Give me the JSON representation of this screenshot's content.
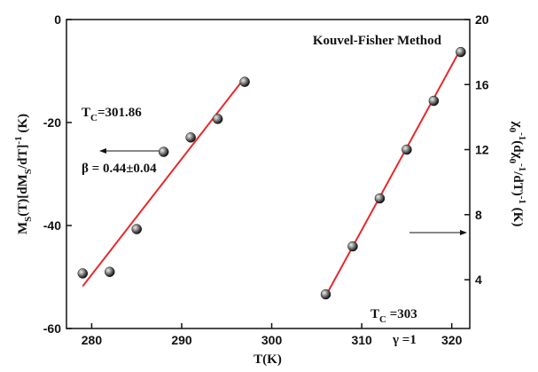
{
  "chart_data": {
    "type": "scatter",
    "xlabel": "T(K)",
    "ylabel": [
      [
        "M",
        "base"
      ],
      [
        "S",
        "sub"
      ],
      [
        "(T)[dM",
        "base"
      ],
      [
        "S",
        "sub"
      ],
      [
        "/dT]",
        "base"
      ],
      [
        "-1",
        "sup"
      ],
      [
        " (K)",
        "base"
      ]
    ],
    "y2label": [
      [
        "χ",
        "base"
      ],
      [
        "0",
        "sub"
      ],
      [
        "-1",
        "sup"
      ],
      [
        "(dχ",
        "base"
      ],
      [
        "0",
        "sub"
      ],
      [
        "-1",
        "sup"
      ],
      [
        "/dT)",
        "base"
      ],
      [
        "-1",
        "sup"
      ],
      [
        " (K)",
        "base"
      ]
    ],
    "xlim": [
      277.2,
      322
    ],
    "xticks": [
      280,
      290,
      300,
      310,
      320
    ],
    "ylim": [
      -60,
      0
    ],
    "yticks": [
      -60,
      -40,
      -20,
      0
    ],
    "y2lim": [
      1,
      20
    ],
    "y2ticks": [
      4,
      8,
      12,
      16,
      20
    ],
    "series": [
      {
        "color": "#111111",
        "x": [
          279,
          282,
          285,
          288,
          291,
          294,
          297
        ],
        "values": [
          -49.3,
          -49.0,
          -40.7,
          -25.7,
          -22.9,
          -19.3,
          -12.1
        ]
      },
      {
        "color": "#111111",
        "axis": "y2",
        "x": [
          306,
          309,
          312,
          315,
          318,
          321
        ],
        "values": [
          3.1,
          6.05,
          9,
          12,
          15,
          18
        ]
      }
    ],
    "fits": [
      {
        "color": "#e8282b",
        "x": [
          279,
          297
        ],
        "values": [
          -51.8,
          -11.3
        ]
      },
      {
        "color": "#e8282b",
        "axis": "y2",
        "x": [
          306,
          321
        ],
        "values": [
          3.0,
          18.2
        ]
      }
    ],
    "annotations": [
      [
        [
          "Kouvel-Fisher Method",
          "base"
        ]
      ],
      [
        [
          "T",
          "base"
        ],
        [
          "C",
          "sub"
        ],
        [
          "=301.86",
          "base"
        ]
      ],
      [
        [
          "β = 0.44±0.04",
          "base"
        ]
      ],
      [
        [
          "T",
          "base"
        ],
        [
          "C",
          "sub"
        ],
        [
          " =303",
          "base"
        ]
      ],
      [
        [
          "γ =1",
          "base"
        ]
      ]
    ]
  }
}
